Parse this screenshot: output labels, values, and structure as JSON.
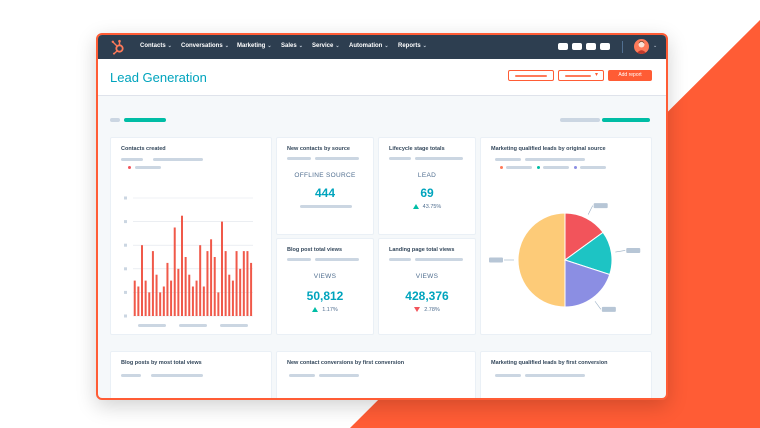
{
  "colors": {
    "brand_orange": "#ff5c35",
    "nav_bg": "#2d3e50",
    "teal": "#00a4bd",
    "green_teal": "#00bda5",
    "pie_peach": "#fdcb78",
    "pie_red": "#f2545b",
    "pie_teal": "#1dc4c4",
    "pie_purple": "#8b8ee3",
    "bars": "#f0594a",
    "placeholder": "#cbd6e2"
  },
  "nav": {
    "logo_icon": "sprocket-icon",
    "items": [
      "Contacts",
      "Conversations",
      "Marketing",
      "Sales",
      "Service",
      "Automation",
      "Reports"
    ]
  },
  "header": {
    "title": "Lead Generation",
    "add_report_label": "Add report"
  },
  "cards": {
    "contacts_created": {
      "title": "Contacts created"
    },
    "new_contacts_source": {
      "title": "New contacts by source",
      "label": "OFFLINE SOURCE",
      "value": "444"
    },
    "lifecycle": {
      "title": "Lifecycle stage totals",
      "label": "LEAD",
      "value": "69",
      "delta": "43.75%"
    },
    "mql_source": {
      "title": "Marketing qualified leads by original source"
    },
    "blog_views": {
      "title": "Blog post total views",
      "label": "VIEWS",
      "value": "50,812",
      "delta": "1.17%"
    },
    "landing_views": {
      "title": "Landing page total views",
      "label": "VIEWS",
      "value": "428,376",
      "delta": "2.78%"
    },
    "blog_most_views": {
      "title": "Blog posts by most total views"
    },
    "conversions": {
      "title": "New contact conversions by first conversion"
    },
    "mql_first": {
      "title": "Marketing qualified leads by first conversion"
    }
  },
  "chart_data": [
    {
      "type": "bar",
      "values": [
        3,
        2.5,
        6,
        3,
        2,
        5.5,
        3.5,
        2,
        2.5,
        4.5,
        3,
        7.5,
        4,
        8.5,
        5,
        3.5,
        2.5,
        3,
        6,
        2.5,
        5.5,
        6.5,
        5,
        2,
        8,
        5.5,
        3.5,
        3,
        5.5,
        4,
        5.5,
        5.5,
        4.5
      ],
      "ylim": [
        0,
        10
      ]
    },
    {
      "type": "pie",
      "values": [
        50,
        15,
        15,
        20
      ],
      "colors": [
        "#fdcb78",
        "#f2545b",
        "#1dc4c4",
        "#8b8ee3"
      ]
    }
  ]
}
